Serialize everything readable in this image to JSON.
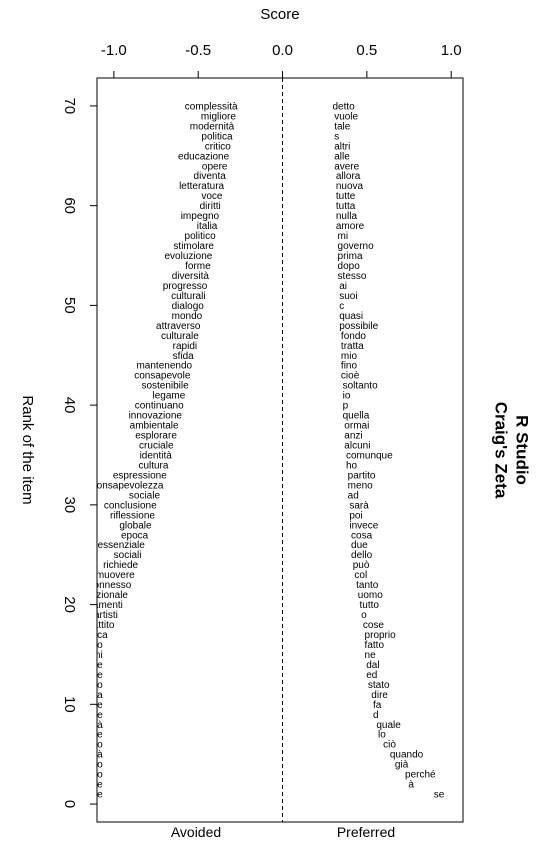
{
  "chart_data": {
    "type": "scatter",
    "title": "",
    "right_title_lines": [
      "R Studio",
      "Craig's Zeta"
    ],
    "xlabel": "Score",
    "ylabel": "Rank of the item",
    "xlim": [
      -1.1,
      1.07
    ],
    "ylim": [
      72.8,
      -1.8
    ],
    "x_ticks": [
      -1.0,
      -0.5,
      0.0,
      0.5,
      1.0
    ],
    "x_tick_labels": [
      "-1.0",
      "-0.5",
      "0.0",
      "0.5",
      "1.0"
    ],
    "y_ticks": [
      0,
      10,
      20,
      30,
      40,
      50,
      60,
      70
    ],
    "y_tick_labels": [
      "0",
      "10",
      "20",
      "30",
      "40",
      "50",
      "60",
      "70"
    ],
    "grid": false,
    "reference_line_x": 0,
    "bottom_labels": [
      "Avoided",
      "Preferred"
    ],
    "series": [
      {
        "name": "Avoided",
        "words": [
          "sfide",
          "azione",
          "ruolo",
          "cambiamento",
          "opportunità",
          "contesto",
          "importante",
          "società",
          "costruire",
          "fondamentale",
          "contemporanea",
          "nostro",
          "affrontare",
          "arte",
          "questioni",
          "futuro",
          "critica",
          "dibattito",
          "artisti",
          "cambiamenti",
          "internazionale",
          "interconnesso",
          "promuovere",
          "richiede",
          "sociali",
          "essenziale",
          "epoca",
          "globale",
          "riflessione",
          "conclusione",
          "sociale",
          "consapevolezza",
          "espressione",
          "cultura",
          "identità",
          "cruciale",
          "esplorare",
          "ambientale",
          "innovazione",
          "continuano",
          "legame",
          "sostenibile",
          "consapevole",
          "mantenendo",
          "sfida",
          "rapidi",
          "culturale",
          "attraverso",
          "mondo",
          "dialogo",
          "culturali",
          "progresso",
          "diversità",
          "forme",
          "evoluzione",
          "stimolare",
          "politico",
          "italia",
          "impegno",
          "diritti",
          "voce",
          "letteratura",
          "diventa",
          "opere",
          "educazione",
          "critico",
          "politica",
          "modernità",
          "migliore",
          "complessità"
        ],
        "x": [
          -1.09,
          -1.09,
          -1.09,
          -1.09,
          -1.09,
          -1.09,
          -1.09,
          -1.09,
          -1.09,
          -1.09,
          -1.09,
          -1.09,
          -1.09,
          -1.09,
          -1.09,
          -1.09,
          -1.06,
          -1.02,
          -1.0,
          -0.97,
          -0.94,
          -0.92,
          -0.9,
          -0.88,
          -0.86,
          -0.84,
          -0.82,
          -0.8,
          -0.78,
          -0.77,
          -0.75,
          -0.73,
          -0.71,
          -0.7,
          -0.68,
          -0.67,
          -0.65,
          -0.64,
          -0.62,
          -0.61,
          -0.6,
          -0.58,
          -0.57,
          -0.56,
          -0.55,
          -0.53,
          -0.52,
          -0.51,
          -0.5,
          -0.49,
          -0.48,
          -0.47,
          -0.46,
          -0.45,
          -0.44,
          -0.43,
          -0.42,
          -0.41,
          -0.4,
          -0.39,
          -0.38,
          -0.37,
          -0.36,
          -0.35,
          -0.34,
          -0.33,
          -0.32,
          -0.31,
          -0.3,
          -0.29
        ],
        "rank": [
          1,
          2,
          3,
          4,
          5,
          6,
          7,
          8,
          9,
          10,
          11,
          12,
          13,
          14,
          15,
          16,
          17,
          18,
          19,
          20,
          21,
          22,
          23,
          24,
          25,
          26,
          27,
          28,
          29,
          30,
          31,
          32,
          33,
          34,
          35,
          36,
          37,
          38,
          39,
          40,
          41,
          42,
          43,
          44,
          45,
          46,
          47,
          48,
          49,
          50,
          51,
          52,
          53,
          54,
          55,
          56,
          57,
          58,
          59,
          60,
          61,
          62,
          63,
          64,
          65,
          66,
          67,
          68,
          69,
          70
        ]
      },
      {
        "name": "Preferred",
        "words": [
          "se",
          "à",
          "perché",
          "già",
          "quando",
          "ciò",
          "lo",
          "quale",
          "d",
          "fa",
          "dire",
          "stato",
          "ed",
          "dal",
          "ne",
          "fatto",
          "proprio",
          "cose",
          "o",
          "tutto",
          "uomo",
          "tanto",
          "col",
          "può",
          "dello",
          "due",
          "cosa",
          "invece",
          "poi",
          "sarà",
          "ad",
          "meno",
          "partito",
          "ho",
          "comunque",
          "alcuni",
          "anzi",
          "ormai",
          "quella",
          "p",
          "io",
          "soltanto",
          "cioè",
          "fino",
          "mio",
          "tratta",
          "fondo",
          "possibile",
          "quasi",
          "c",
          "suoi",
          "ai",
          "stesso",
          "dopo",
          "prima",
          "governo",
          "mi",
          "amore",
          "nulla",
          "tutta",
          "tutte",
          "nuova",
          "allora",
          "avere",
          "alle",
          "altri",
          "s",
          "tale",
          "vuole",
          "detto"
        ],
        "x": [
          0.92,
          0.77,
          0.75,
          0.69,
          0.66,
          0.62,
          0.59,
          0.58,
          0.56,
          0.56,
          0.55,
          0.53,
          0.52,
          0.52,
          0.51,
          0.51,
          0.51,
          0.5,
          0.49,
          0.48,
          0.47,
          0.46,
          0.45,
          0.44,
          0.43,
          0.43,
          0.43,
          0.42,
          0.42,
          0.42,
          0.41,
          0.41,
          0.41,
          0.4,
          0.4,
          0.39,
          0.39,
          0.39,
          0.38,
          0.38,
          0.38,
          0.38,
          0.37,
          0.37,
          0.37,
          0.37,
          0.37,
          0.36,
          0.36,
          0.36,
          0.36,
          0.36,
          0.35,
          0.35,
          0.35,
          0.35,
          0.35,
          0.34,
          0.34,
          0.34,
          0.34,
          0.34,
          0.34,
          0.33,
          0.33,
          0.33,
          0.33,
          0.33,
          0.33,
          0.32
        ],
        "rank": [
          1,
          2,
          3,
          4,
          5,
          6,
          7,
          8,
          9,
          10,
          11,
          12,
          13,
          14,
          15,
          16,
          17,
          18,
          19,
          20,
          21,
          22,
          23,
          24,
          25,
          26,
          27,
          28,
          29,
          30,
          31,
          32,
          33,
          34,
          35,
          36,
          37,
          38,
          39,
          40,
          41,
          42,
          43,
          44,
          45,
          46,
          47,
          48,
          49,
          50,
          51,
          52,
          53,
          54,
          55,
          56,
          57,
          58,
          59,
          60,
          61,
          62,
          63,
          64,
          65,
          66,
          67,
          68,
          69,
          70
        ]
      }
    ]
  }
}
